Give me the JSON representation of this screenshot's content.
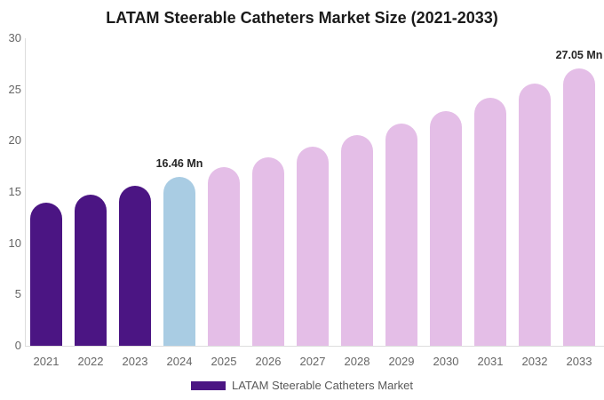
{
  "chart_data": {
    "type": "bar",
    "title": "LATAM Steerable Catheters Market Size (2021-2033)",
    "categories": [
      "2021",
      "2022",
      "2023",
      "2024",
      "2025",
      "2026",
      "2027",
      "2028",
      "2029",
      "2030",
      "2031",
      "2032",
      "2033"
    ],
    "values": [
      13.96,
      14.75,
      15.59,
      16.46,
      17.4,
      18.39,
      19.43,
      20.54,
      21.7,
      22.93,
      24.23,
      25.6,
      27.05
    ],
    "bar_colors": [
      "#4B1583",
      "#4B1583",
      "#4B1583",
      "#A9CCE3",
      "#E4BEE7",
      "#E4BEE7",
      "#E4BEE7",
      "#E4BEE7",
      "#E4BEE7",
      "#E4BEE7",
      "#E4BEE7",
      "#E4BEE7",
      "#E4BEE7"
    ],
    "annotations": [
      {
        "index": 3,
        "text": "16.46 Mn"
      },
      {
        "index": 12,
        "text": "27.05 Mn"
      }
    ],
    "xlabel": "",
    "ylabel": "",
    "ylim": [
      0,
      30
    ],
    "yticks": [
      0,
      5,
      10,
      15,
      20,
      25,
      30
    ],
    "grid": false,
    "legend": {
      "position": "bottom",
      "entries": [
        {
          "label": "LATAM Steerable Catheters Market",
          "color": "#4B1583"
        }
      ]
    },
    "colors": {
      "historical": "#4B1583",
      "base_year": "#A9CCE3",
      "forecast": "#E4BEE7",
      "axis_line": "#dddddd",
      "tick_text": "#666666",
      "annotation_text": "#262626"
    }
  }
}
